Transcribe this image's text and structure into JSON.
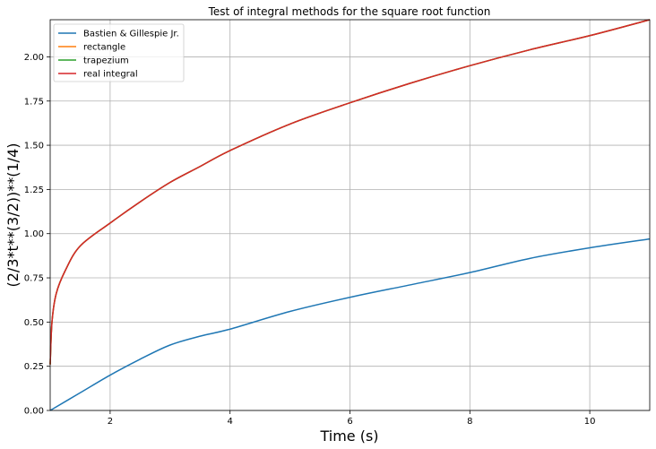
{
  "chart_data": {
    "type": "line",
    "title": "Test of integral methods for the square root function",
    "xlabel": "Time (s)",
    "ylabel": "(2/3*t**(3/2))**(1/4)",
    "xlim": [
      1,
      11
    ],
    "ylim": [
      0,
      2.21
    ],
    "xticks": [
      2,
      4,
      6,
      8,
      10
    ],
    "xtick_labels": [
      "2",
      "4",
      "6",
      "8",
      "10"
    ],
    "yticks": [
      0,
      0.25,
      0.5,
      0.75,
      1.0,
      1.25,
      1.5,
      1.75,
      2.0
    ],
    "ytick_labels": [
      "0.00",
      "0.25",
      "0.50",
      "0.75",
      "1.00",
      "1.25",
      "1.50",
      "1.75",
      "2.00"
    ],
    "grid": true,
    "legend_position": "top-left",
    "series": [
      {
        "name": "Bastien & Gillespie Jr.",
        "color": "#1f77b4",
        "x": [
          1,
          1.5,
          2,
          2.5,
          3,
          3.5,
          4,
          5,
          6,
          7,
          8,
          9,
          10,
          11
        ],
        "y": [
          0.0,
          0.1,
          0.2,
          0.29,
          0.37,
          0.42,
          0.46,
          0.56,
          0.64,
          0.71,
          0.78,
          0.86,
          0.92,
          0.97
        ]
      },
      {
        "name": "rectangle",
        "color": "#ff7f0e",
        "x": [
          1,
          1.03,
          1.1,
          1.25,
          1.5,
          2,
          2.5,
          3,
          3.5,
          4,
          5,
          6,
          7,
          8,
          9,
          10,
          11
        ],
        "y": [
          0.26,
          0.5,
          0.66,
          0.79,
          0.93,
          1.06,
          1.18,
          1.29,
          1.38,
          1.47,
          1.62,
          1.74,
          1.85,
          1.95,
          2.04,
          2.12,
          2.21
        ]
      },
      {
        "name": "trapezium",
        "color": "#2ca02c",
        "x": [
          1,
          1.03,
          1.1,
          1.25,
          1.5,
          2,
          2.5,
          3,
          3.5,
          4,
          5,
          6,
          7,
          8,
          9,
          10,
          11
        ],
        "y": [
          0.26,
          0.5,
          0.66,
          0.79,
          0.93,
          1.06,
          1.18,
          1.29,
          1.38,
          1.47,
          1.62,
          1.74,
          1.85,
          1.95,
          2.04,
          2.12,
          2.21
        ]
      },
      {
        "name": "real integral",
        "color": "#d62728",
        "x": [
          1,
          1.03,
          1.1,
          1.25,
          1.5,
          2,
          2.5,
          3,
          3.5,
          4,
          5,
          6,
          7,
          8,
          9,
          10,
          11
        ],
        "y": [
          0.26,
          0.5,
          0.66,
          0.79,
          0.93,
          1.06,
          1.18,
          1.29,
          1.38,
          1.47,
          1.62,
          1.74,
          1.85,
          1.95,
          2.04,
          2.12,
          2.21
        ]
      }
    ]
  }
}
